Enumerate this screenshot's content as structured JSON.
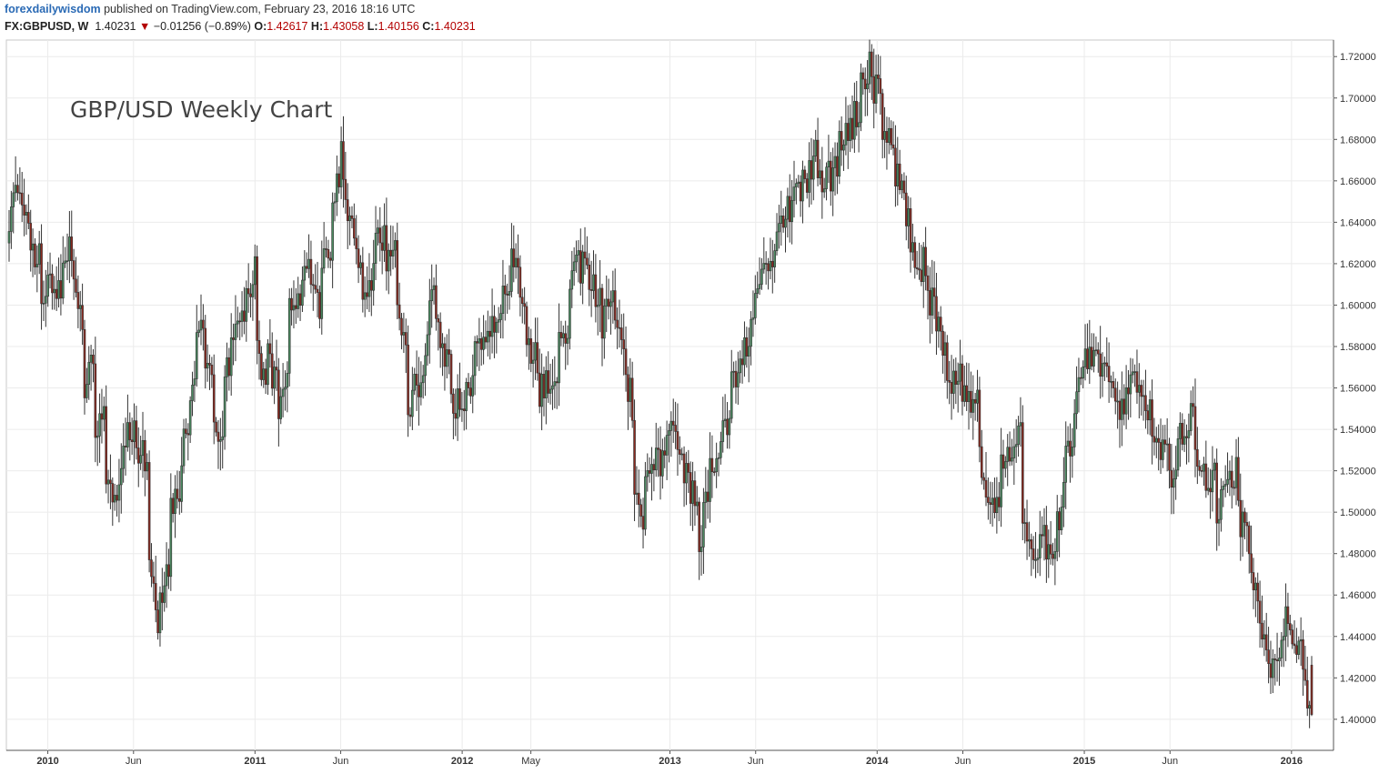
{
  "header": {
    "author": "forexdailywisdom",
    "published_text": "published on TradingView.com, February 23, 2016 18:16 UTC",
    "symbol": "FX:GBPUSD, W",
    "last": "1.40231",
    "change": "−0.01256 (−0.89%)",
    "open_label": "O:",
    "open": "1.42617",
    "high_label": "H:",
    "high": "1.43058",
    "low_label": "L:",
    "low": "1.40156",
    "close_label": "C:",
    "close": "1.40231",
    "direction_icon": "triangle-down-icon"
  },
  "chart_data": {
    "type": "candlestick",
    "title": "GBP/USD Weekly Chart",
    "xlabel": "",
    "ylabel": "",
    "ylim": [
      1.385,
      1.728
    ],
    "y_ticks": [
      "1.72000",
      "1.70000",
      "1.68000",
      "1.66000",
      "1.64000",
      "1.62000",
      "1.60000",
      "1.58000",
      "1.56000",
      "1.54000",
      "1.52000",
      "1.50000",
      "1.48000",
      "1.46000",
      "1.44000",
      "1.42000",
      "1.40000"
    ],
    "x_ticks": [
      {
        "label": "2010",
        "date": "2010-01-01"
      },
      {
        "label": "Jun",
        "date": "2010-06-01"
      },
      {
        "label": "2011",
        "date": "2011-01-01"
      },
      {
        "label": "Jun",
        "date": "2011-06-01"
      },
      {
        "label": "2012",
        "date": "2012-01-01"
      },
      {
        "label": "May",
        "date": "2012-05-01"
      },
      {
        "label": "2013",
        "date": "2013-01-01"
      },
      {
        "label": "Jun",
        "date": "2013-06-01"
      },
      {
        "label": "2014",
        "date": "2014-01-01"
      },
      {
        "label": "Jun",
        "date": "2014-06-01"
      },
      {
        "label": "2015",
        "date": "2015-01-01"
      },
      {
        "label": "Jun",
        "date": "2015-06-01"
      },
      {
        "label": "2016",
        "date": "2016-01-01"
      }
    ],
    "grid": true,
    "up_color": "#4a8a60",
    "down_color": "#8b2a20",
    "weekly_closes": [
      [
        1.63,
        1.66
      ],
      [
        1.66,
        1.645
      ],
      [
        1.62,
        1.63
      ],
      [
        1.6,
        1.62
      ],
      [
        1.6,
        1.612
      ],
      [
        1.62,
        1.625
      ],
      [
        1.61,
        1.59
      ],
      [
        1.56,
        1.57
      ],
      [
        1.53,
        1.545
      ],
      [
        1.52,
        1.5
      ],
      [
        1.51,
        1.53
      ],
      [
        1.54,
        1.535
      ],
      [
        1.535,
        1.52
      ],
      [
        1.49,
        1.45
      ],
      [
        1.45,
        1.47
      ],
      [
        1.5,
        1.51
      ],
      [
        1.52,
        1.55
      ],
      [
        1.56,
        1.59
      ],
      [
        1.59,
        1.56
      ],
      [
        1.55,
        1.53
      ],
      [
        1.56,
        1.58
      ],
      [
        1.59,
        1.6
      ],
      [
        1.6,
        1.62
      ],
      [
        1.58,
        1.56
      ],
      [
        1.58,
        1.56
      ],
      [
        1.55,
        1.57
      ],
      [
        1.6,
        1.605
      ],
      [
        1.6,
        1.62
      ],
      [
        1.62,
        1.6
      ],
      [
        1.62,
        1.63
      ],
      [
        1.65,
        1.67
      ],
      [
        1.66,
        1.64
      ],
      [
        1.63,
        1.61
      ],
      [
        1.6,
        1.62
      ],
      [
        1.63,
        1.635
      ],
      [
        1.62,
        1.63
      ],
      [
        1.61,
        1.58
      ],
      [
        1.55,
        1.56
      ],
      [
        1.56,
        1.58
      ],
      [
        1.61,
        1.6
      ],
      [
        1.59,
        1.57
      ],
      [
        1.56,
        1.55
      ],
      [
        1.55,
        1.56
      ],
      [
        1.57,
        1.58
      ],
      [
        1.58,
        1.59
      ],
      [
        1.59,
        1.605
      ],
      [
        1.6,
        1.625
      ],
      [
        1.62,
        1.6
      ],
      [
        1.58,
        1.58
      ],
      [
        1.56,
        1.56
      ],
      [
        1.56,
        1.57
      ],
      [
        1.58,
        1.585
      ],
      [
        1.61,
        1.62
      ],
      [
        1.62,
        1.615
      ],
      [
        1.61,
        1.6
      ],
      [
        1.59,
        1.6
      ],
      [
        1.6,
        1.59
      ],
      [
        1.58,
        1.55
      ],
      [
        1.52,
        1.5
      ],
      [
        1.51,
        1.52
      ],
      [
        1.52,
        1.53
      ],
      [
        1.53,
        1.54
      ],
      [
        1.53,
        1.515
      ],
      [
        1.52,
        1.5
      ],
      [
        1.48,
        1.51
      ],
      [
        1.52,
        1.53
      ],
      [
        1.53,
        1.55
      ],
      [
        1.56,
        1.57
      ],
      [
        1.57,
        1.59
      ],
      [
        1.6,
        1.61
      ],
      [
        1.62,
        1.625
      ],
      [
        1.63,
        1.64
      ],
      [
        1.64,
        1.65
      ],
      [
        1.655,
        1.66
      ],
      [
        1.66,
        1.675
      ],
      [
        1.665,
        1.66
      ],
      [
        1.66,
        1.67
      ],
      [
        1.68,
        1.685
      ],
      [
        1.685,
        1.695
      ],
      [
        1.705,
        1.715
      ],
      [
        1.71,
        1.7
      ],
      [
        1.69,
        1.68
      ],
      [
        1.67,
        1.66
      ],
      [
        1.65,
        1.63
      ],
      [
        1.61,
        1.62
      ],
      [
        1.61,
        1.6
      ],
      [
        1.59,
        1.58
      ],
      [
        1.57,
        1.56
      ],
      [
        1.565,
        1.56
      ],
      [
        1.56,
        1.55
      ],
      [
        1.53,
        1.51
      ],
      [
        1.5,
        1.51
      ],
      [
        1.52,
        1.53
      ],
      [
        1.53,
        1.54
      ],
      [
        1.5,
        1.48
      ],
      [
        1.48,
        1.49
      ],
      [
        1.49,
        1.47
      ],
      [
        1.48,
        1.51
      ],
      [
        1.52,
        1.54
      ],
      [
        1.56,
        1.57
      ],
      [
        1.575,
        1.58
      ],
      [
        1.58,
        1.565
      ],
      [
        1.56,
        1.55
      ],
      [
        1.55,
        1.56
      ],
      [
        1.56,
        1.565
      ],
      [
        1.565,
        1.55
      ],
      [
        1.54,
        1.53
      ],
      [
        1.53,
        1.52
      ],
      [
        1.52,
        1.54
      ],
      [
        1.54,
        1.545
      ],
      [
        1.53,
        1.52
      ],
      [
        1.51,
        1.52
      ],
      [
        1.5,
        1.51
      ],
      [
        1.515,
        1.52
      ],
      [
        1.5,
        1.49
      ],
      [
        1.48,
        1.46
      ],
      [
        1.44,
        1.43
      ],
      [
        1.42,
        1.43
      ],
      [
        1.44,
        1.45
      ],
      [
        1.445,
        1.43
      ],
      [
        1.425,
        1.4023
      ]
    ]
  }
}
